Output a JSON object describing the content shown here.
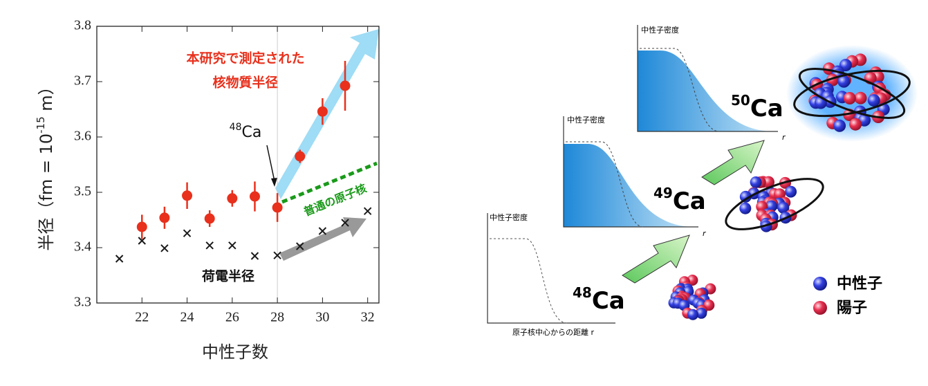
{
  "chart_data": {
    "type": "scatter",
    "x_label": "中性子数",
    "y_label": {
      "text": "半径（fm = 10",
      "exponent": "-15",
      "unit": " m）"
    },
    "xlim": [
      20,
      32.5
    ],
    "xticks": [
      22,
      24,
      26,
      28,
      30,
      32
    ],
    "ylim": [
      3.3,
      3.8
    ],
    "yticks": [
      3.3,
      3.4,
      3.5,
      3.6,
      3.7,
      3.8
    ],
    "reference_x": 28,
    "series": [
      {
        "color": "#e8301c",
        "marker": "circle",
        "x": [
          22,
          23,
          24,
          25,
          26,
          27,
          28,
          29,
          30,
          31
        ],
        "values": [
          3.4375,
          3.454,
          3.494,
          3.4525,
          3.489,
          3.4925,
          3.4725,
          3.565,
          3.646,
          3.6925
        ],
        "errors": [
          0.022,
          0.02,
          0.024,
          0.015,
          0.015,
          0.027,
          0.026,
          0.012,
          0.024,
          0.045
        ]
      },
      {
        "color": "#1a1a1a",
        "marker": "cross",
        "x": [
          21,
          22,
          23,
          24,
          25,
          26,
          27,
          28,
          29,
          30,
          31,
          32
        ],
        "values": [
          3.38,
          3.4125,
          3.399,
          3.426,
          3.404,
          3.404,
          3.385,
          3.386,
          3.4025,
          3.43,
          3.445,
          3.466
        ]
      }
    ],
    "annotations": {
      "matter_radius": [
        "本研究で測定された",
        "核物質半径"
      ],
      "charge_radius": "荷電半径",
      "normal_nucleus": "普通の原子核",
      "isotope": {
        "mass": "48",
        "symbol": "Ca"
      }
    }
  },
  "diagram": {
    "panels": [
      {
        "y_label": "中性子密度",
        "x_label": "原子核中心からの距離 r"
      },
      {
        "y_label": "中性子密度",
        "x_label": "r"
      },
      {
        "y_label": "中性子密度",
        "x_label": "r"
      }
    ],
    "nuclei": [
      {
        "mass": "48",
        "symbol": "Ca"
      },
      {
        "mass": "49",
        "symbol": "Ca"
      },
      {
        "mass": "50",
        "symbol": "Ca"
      }
    ],
    "legend": [
      "中性子",
      "陽子"
    ]
  }
}
